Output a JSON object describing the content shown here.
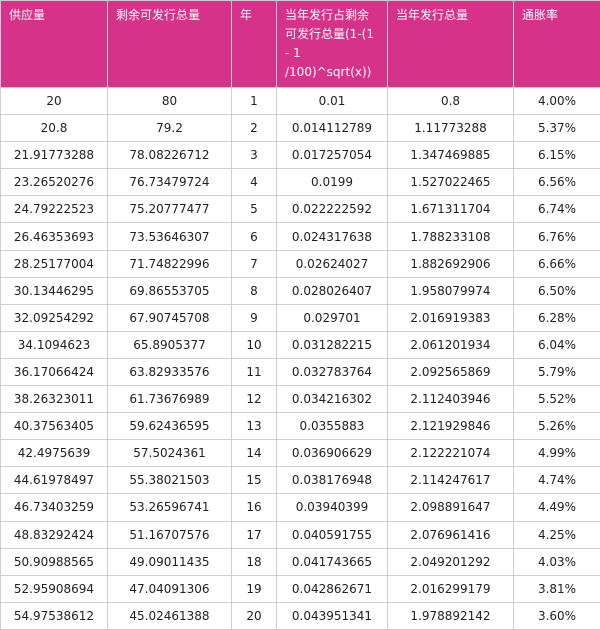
{
  "headers": [
    "供应量",
    "剩余可发行总量",
    "年",
    "当年发行占剩余可发行总量(1-(1 - 1 /100)^sqrt(x))",
    "当年发行总量",
    "通胀率"
  ],
  "rows": [
    [
      "20",
      "80",
      "1",
      "0.01",
      "0.8",
      "4.00%"
    ],
    [
      "20.8",
      "79.2",
      "2",
      "0.014112789",
      "1.11773288",
      "5.37%"
    ],
    [
      "21.91773288",
      "78.08226712",
      "3",
      "0.017257054",
      "1.347469885",
      "6.15%"
    ],
    [
      "23.26520276",
      "76.73479724",
      "4",
      "0.0199",
      "1.527022465",
      "6.56%"
    ],
    [
      "24.79222523",
      "75.20777477",
      "5",
      "0.022222592",
      "1.671311704",
      "6.74%"
    ],
    [
      "26.46353693",
      "73.53646307",
      "6",
      "0.024317638",
      "1.788233108",
      "6.76%"
    ],
    [
      "28.25177004",
      "71.74822996",
      "7",
      "0.02624027",
      "1.882692906",
      "6.66%"
    ],
    [
      "30.13446295",
      "69.86553705",
      "8",
      "0.028026407",
      "1.958079974",
      "6.50%"
    ],
    [
      "32.09254292",
      "67.90745708",
      "9",
      "0.029701",
      "2.016919383",
      "6.28%"
    ],
    [
      "34.1094623",
      "65.8905377",
      "10",
      "0.031282215",
      "2.061201934",
      "6.04%"
    ],
    [
      "36.17066424",
      "63.82933576",
      "11",
      "0.032783764",
      "2.092565869",
      "5.79%"
    ],
    [
      "38.26323011",
      "61.73676989",
      "12",
      "0.034216302",
      "2.112403946",
      "5.52%"
    ],
    [
      "40.37563405",
      "59.62436595",
      "13",
      "0.0355883",
      "2.121929846",
      "5.26%"
    ],
    [
      "42.4975639",
      "57.5024361",
      "14",
      "0.036906629",
      "2.122221074",
      "4.99%"
    ],
    [
      "44.61978497",
      "55.38021503",
      "15",
      "0.038176948",
      "2.114247617",
      "4.74%"
    ],
    [
      "46.73403259",
      "53.26596741",
      "16",
      "0.03940399",
      "2.098891647",
      "4.49%"
    ],
    [
      "48.83292424",
      "51.16707576",
      "17",
      "0.040591755",
      "2.076961416",
      "4.25%"
    ],
    [
      "50.90988565",
      "49.09011435",
      "18",
      "0.041743665",
      "2.049201292",
      "4.03%"
    ],
    [
      "52.95908694",
      "47.04091306",
      "19",
      "0.042862671",
      "2.016299179",
      "3.81%"
    ],
    [
      "54.97538612",
      "45.02461388",
      "20",
      "0.043951341",
      "1.978892142",
      "3.60%"
    ]
  ],
  "colors": {
    "header_bg": "#d6328a",
    "header_text": "#ffffff",
    "border": "#cfcfcf"
  }
}
